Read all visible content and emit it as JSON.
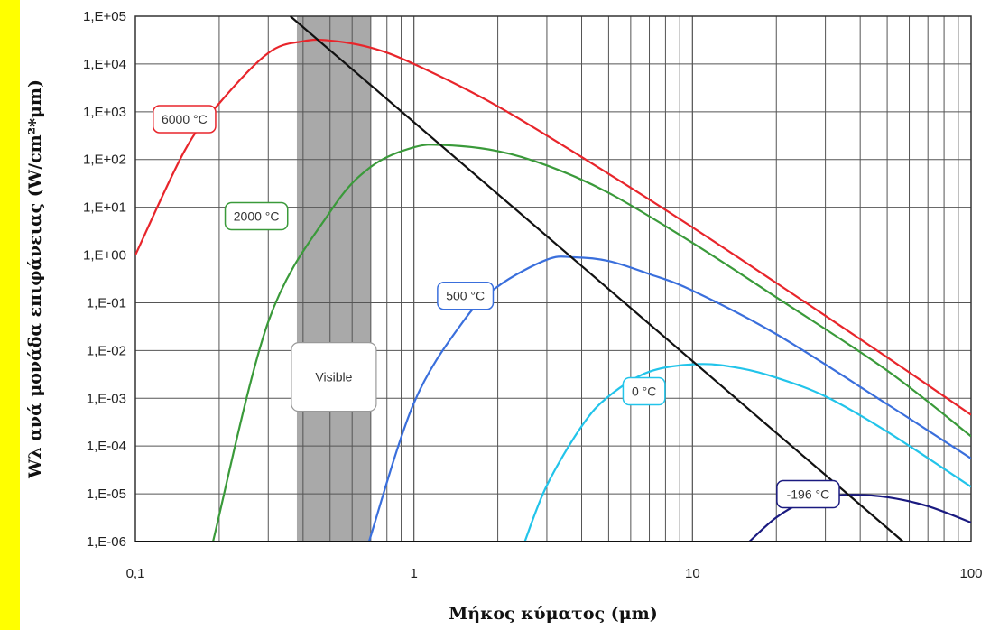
{
  "chart_data": {
    "type": "line",
    "title": "",
    "xlabel": "Μήκος κύματος (μm)",
    "ylabel": "Wλ ανά μονάδα επιφάνειας (W/cm²*μm)",
    "x_scale": "log",
    "y_scale": "log",
    "xlim": [
      0.1,
      100
    ],
    "ylim": [
      1e-06,
      100000
    ],
    "grid": true,
    "legend": "none",
    "x_ticks": [
      "0,1",
      "1",
      "10",
      "100"
    ],
    "y_ticks": [
      "1,E-06",
      "1,E-05",
      "1,E-04",
      "1,E-03",
      "1,E-02",
      "1,E-01",
      "1,E+00",
      "1,E+01",
      "1,E+02",
      "1,E+03",
      "1,E+04",
      "1,E+05"
    ],
    "visible_band": {
      "label": "Visible",
      "x_range": [
        0.38,
        0.7
      ],
      "color": "#a9a9a9"
    },
    "series": [
      {
        "name": "6000 °C",
        "color": "#e8252b",
        "label_color": "#e8252b",
        "x": [
          0.1,
          0.15,
          0.2,
          0.3,
          0.4,
          0.5,
          0.7,
          1,
          2,
          5,
          10,
          20,
          50,
          100
        ],
        "y": [
          1.0,
          150,
          1500,
          17000,
          30000,
          31000,
          22000,
          10000,
          1300,
          50,
          3.8,
          0.26,
          0.0072,
          0.00045
        ]
      },
      {
        "name": "2000 °C",
        "color": "#3a9a3a",
        "label_color": "#3a9a3a",
        "x": [
          0.19,
          0.3,
          0.5,
          0.7,
          1,
          1.3,
          2,
          3,
          5,
          10,
          20,
          50,
          100
        ],
        "y": [
          1e-06,
          0.04,
          8,
          70,
          180,
          200,
          150,
          75,
          20,
          1.8,
          0.13,
          0.0038,
          0.00016
        ]
      },
      {
        "name": "500 °C",
        "color": "#3a6fdc",
        "label_color": "#3a6fdc",
        "x": [
          0.69,
          1,
          1.5,
          2,
          3,
          3.75,
          5,
          7,
          10,
          20,
          50,
          100
        ],
        "y": [
          1e-06,
          0.0008,
          0.04,
          0.22,
          0.8,
          0.9,
          0.75,
          0.4,
          0.18,
          0.022,
          0.00075,
          5.5e-05
        ]
      },
      {
        "name": "0 °C",
        "color": "#22c4ea",
        "label_color": "#22c4ea",
        "x": [
          2.5,
          3,
          4,
          5,
          7,
          10.6,
          15,
          20,
          30,
          50,
          100
        ],
        "y": [
          1e-06,
          1.5e-05,
          0.00026,
          0.0011,
          0.0036,
          0.0052,
          0.0042,
          0.0027,
          0.0011,
          0.0002,
          1.4e-05
        ]
      },
      {
        "name": "-196 °C",
        "color": "#1a1a80",
        "label_color": "#1a1a80",
        "x": [
          16,
          20,
          25,
          30,
          37.5,
          50,
          70,
          100
        ],
        "y": [
          1e-06,
          3.2e-06,
          6.7e-06,
          8.6e-06,
          9.5e-06,
          8.5e-06,
          5.5e-06,
          2.5e-06
        ]
      }
    ],
    "wien_line": {
      "color": "#111111",
      "x": [
        0.36,
        57
      ],
      "y": [
        100000,
        1e-06
      ]
    },
    "annotations": [
      {
        "text": "6000 °C",
        "series": 0,
        "x": 0.15,
        "y": 700
      },
      {
        "text": "2000 °C",
        "series": 1,
        "x": 0.272,
        "y": 6.5
      },
      {
        "text": "500 °C",
        "series": 2,
        "x": 1.53,
        "y": 0.14
      },
      {
        "text": "0 °C",
        "series": 3,
        "x": 6.7,
        "y": 0.0014
      },
      {
        "text": "-196 °C",
        "series": 4,
        "x": 26,
        "y": 9.8e-06
      }
    ]
  }
}
